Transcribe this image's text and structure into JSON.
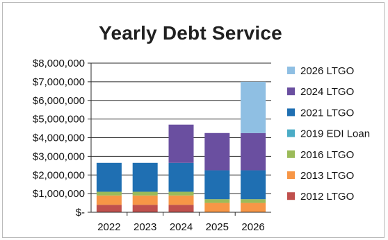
{
  "chart_data": {
    "type": "bar",
    "stacked": true,
    "title": "Yearly Debt Service",
    "categories": [
      "2022",
      "2023",
      "2024",
      "2025",
      "2026"
    ],
    "y_tick_labels": [
      "$-",
      "$1,000,000",
      "$2,000,000",
      "$3,000,000",
      "$4,000,000",
      "$5,000,000",
      "$6,000,000",
      "$7,000,000",
      "$8,000,000"
    ],
    "ylim": [
      0,
      8000000
    ],
    "grid": true,
    "legend_position": "right",
    "series": [
      {
        "name": "2012 LTGO",
        "color": "#c0504d",
        "values": [
          400000,
          400000,
          400000,
          0,
          0
        ]
      },
      {
        "name": "2013 LTGO",
        "color": "#f79646",
        "values": [
          500000,
          500000,
          500000,
          500000,
          500000
        ]
      },
      {
        "name": "2016 LTGO",
        "color": "#9bbb59",
        "values": [
          200000,
          200000,
          200000,
          200000,
          200000
        ]
      },
      {
        "name": "2019 EDI Loan",
        "color": "#4bacc6",
        "values": [
          0,
          0,
          0,
          0,
          0
        ]
      },
      {
        "name": "2021 LTGO",
        "color": "#1f6fb2",
        "values": [
          1550000,
          1550000,
          1550000,
          1550000,
          1550000
        ]
      },
      {
        "name": "2024 LTGO",
        "color": "#6a4fa0",
        "values": [
          0,
          0,
          2050000,
          2000000,
          2000000
        ]
      },
      {
        "name": "2026 LTGO",
        "color": "#8fbfe3",
        "values": [
          0,
          0,
          0,
          0,
          2750000
        ]
      }
    ]
  }
}
